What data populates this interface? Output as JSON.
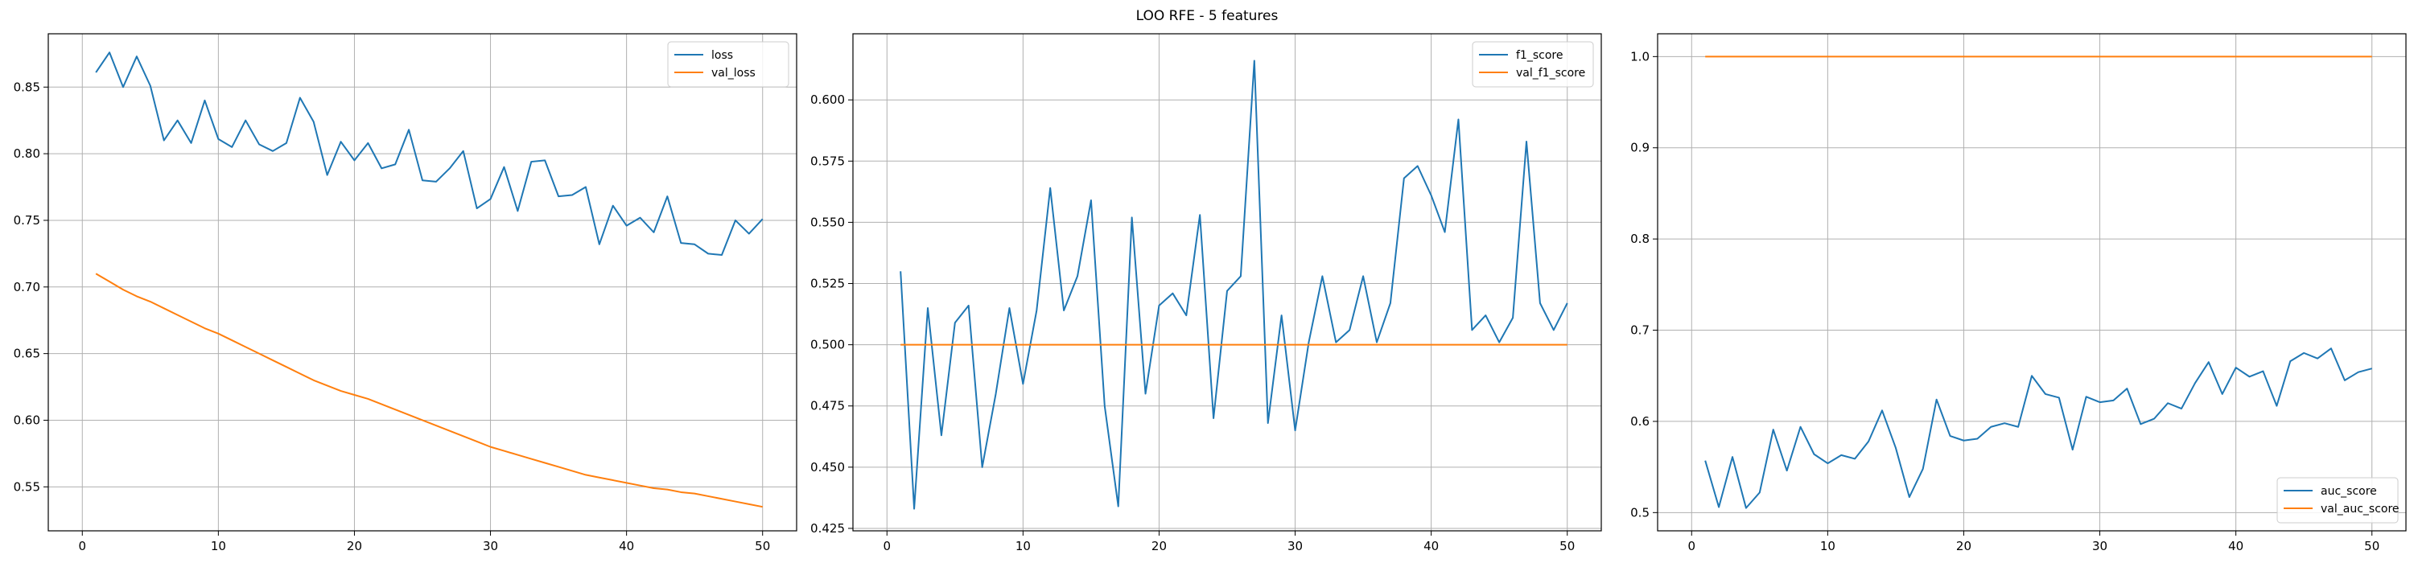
{
  "figure": {
    "title": "LOO RFE - 5 features"
  },
  "colors": {
    "train": "#1f77b4",
    "val": "#ff7f0e",
    "grid": "#b0b0b0",
    "axes": "#000000"
  },
  "chart_data": [
    {
      "type": "line",
      "title": "",
      "xlabel": "",
      "ylabel": "",
      "xlim": [
        -2.5,
        52.5
      ],
      "ylim": [
        0.517,
        0.89
      ],
      "xticks": [
        0,
        10,
        20,
        30,
        40,
        50
      ],
      "yticks": [
        0.55,
        0.6,
        0.65,
        0.7,
        0.75,
        0.8,
        0.85
      ],
      "ytick_labels": [
        "0.55",
        "0.60",
        "0.65",
        "0.70",
        "0.75",
        "0.80",
        "0.85"
      ],
      "grid": true,
      "legend": "top-right",
      "x": [
        1,
        2,
        3,
        4,
        5,
        6,
        7,
        8,
        9,
        10,
        11,
        12,
        13,
        14,
        15,
        16,
        17,
        18,
        19,
        20,
        21,
        22,
        23,
        24,
        25,
        26,
        27,
        28,
        29,
        30,
        31,
        32,
        33,
        34,
        35,
        36,
        37,
        38,
        39,
        40,
        41,
        42,
        43,
        44,
        45,
        46,
        47,
        48,
        49,
        50
      ],
      "series": [
        {
          "name": "loss",
          "values": [
            0.861,
            0.876,
            0.85,
            0.873,
            0.851,
            0.81,
            0.825,
            0.808,
            0.84,
            0.811,
            0.805,
            0.825,
            0.807,
            0.802,
            0.808,
            0.842,
            0.824,
            0.784,
            0.809,
            0.795,
            0.808,
            0.789,
            0.792,
            0.818,
            0.78,
            0.779,
            0.789,
            0.802,
            0.759,
            0.766,
            0.79,
            0.757,
            0.794,
            0.795,
            0.768,
            0.769,
            0.775,
            0.732,
            0.761,
            0.746,
            0.752,
            0.741,
            0.768,
            0.733,
            0.732,
            0.725,
            0.724,
            0.75,
            0.74,
            0.751
          ]
        },
        {
          "name": "val_loss",
          "values": [
            0.71,
            0.704,
            0.698,
            0.693,
            0.689,
            0.684,
            0.679,
            0.674,
            0.669,
            0.665,
            0.66,
            0.655,
            0.65,
            0.645,
            0.64,
            0.635,
            0.63,
            0.626,
            0.622,
            0.619,
            0.616,
            0.612,
            0.608,
            0.604,
            0.6,
            0.596,
            0.592,
            0.588,
            0.584,
            0.58,
            0.577,
            0.574,
            0.571,
            0.568,
            0.565,
            0.562,
            0.559,
            0.557,
            0.555,
            0.553,
            0.551,
            0.549,
            0.548,
            0.546,
            0.545,
            0.543,
            0.541,
            0.539,
            0.537,
            0.535
          ]
        }
      ]
    },
    {
      "type": "line",
      "title": "",
      "xlabel": "",
      "ylabel": "",
      "xlim": [
        -2.5,
        52.5
      ],
      "ylim": [
        0.424,
        0.627
      ],
      "xticks": [
        0,
        10,
        20,
        30,
        40,
        50
      ],
      "yticks": [
        0.425,
        0.45,
        0.475,
        0.5,
        0.525,
        0.55,
        0.575,
        0.6
      ],
      "ytick_labels": [
        "0.425",
        "0.450",
        "0.475",
        "0.500",
        "0.525",
        "0.550",
        "0.575",
        "0.600"
      ],
      "grid": true,
      "legend": "top-right",
      "x": [
        1,
        2,
        3,
        4,
        5,
        6,
        7,
        8,
        9,
        10,
        11,
        12,
        13,
        14,
        15,
        16,
        17,
        18,
        19,
        20,
        21,
        22,
        23,
        24,
        25,
        26,
        27,
        28,
        29,
        30,
        31,
        32,
        33,
        34,
        35,
        36,
        37,
        38,
        39,
        40,
        41,
        42,
        43,
        44,
        45,
        46,
        47,
        48,
        49,
        50
      ],
      "series": [
        {
          "name": "f1_score",
          "values": [
            0.53,
            0.433,
            0.515,
            0.463,
            0.509,
            0.516,
            0.45,
            0.48,
            0.515,
            0.484,
            0.514,
            0.564,
            0.514,
            0.528,
            0.559,
            0.475,
            0.434,
            0.552,
            0.48,
            0.516,
            0.521,
            0.512,
            0.553,
            0.47,
            0.522,
            0.528,
            0.616,
            0.468,
            0.512,
            0.465,
            0.501,
            0.528,
            0.501,
            0.506,
            0.528,
            0.501,
            0.517,
            0.568,
            0.573,
            0.561,
            0.546,
            0.592,
            0.506,
            0.512,
            0.501,
            0.511,
            0.583,
            0.517,
            0.506,
            0.517
          ]
        },
        {
          "name": "val_f1_score",
          "values": [
            0.5,
            0.5,
            0.5,
            0.5,
            0.5,
            0.5,
            0.5,
            0.5,
            0.5,
            0.5,
            0.5,
            0.5,
            0.5,
            0.5,
            0.5,
            0.5,
            0.5,
            0.5,
            0.5,
            0.5,
            0.5,
            0.5,
            0.5,
            0.5,
            0.5,
            0.5,
            0.5,
            0.5,
            0.5,
            0.5,
            0.5,
            0.5,
            0.5,
            0.5,
            0.5,
            0.5,
            0.5,
            0.5,
            0.5,
            0.5,
            0.5,
            0.5,
            0.5,
            0.5,
            0.5,
            0.5,
            0.5,
            0.5,
            0.5,
            0.5
          ]
        }
      ]
    },
    {
      "type": "line",
      "title": "",
      "xlabel": "",
      "ylabel": "",
      "xlim": [
        -2.5,
        52.5
      ],
      "ylim": [
        0.48,
        1.025
      ],
      "xticks": [
        0,
        10,
        20,
        30,
        40,
        50
      ],
      "yticks": [
        0.5,
        0.6,
        0.7,
        0.8,
        0.9,
        1.0
      ],
      "ytick_labels": [
        "0.5",
        "0.6",
        "0.7",
        "0.8",
        "0.9",
        "1.0"
      ],
      "grid": true,
      "legend": "bottom-right",
      "x": [
        1,
        2,
        3,
        4,
        5,
        6,
        7,
        8,
        9,
        10,
        11,
        12,
        13,
        14,
        15,
        16,
        17,
        18,
        19,
        20,
        21,
        22,
        23,
        24,
        25,
        26,
        27,
        28,
        29,
        30,
        31,
        32,
        33,
        34,
        35,
        36,
        37,
        38,
        39,
        40,
        41,
        42,
        43,
        44,
        45,
        46,
        47,
        48,
        49,
        50
      ],
      "series": [
        {
          "name": "auc_score",
          "values": [
            0.557,
            0.506,
            0.561,
            0.505,
            0.522,
            0.591,
            0.546,
            0.594,
            0.564,
            0.554,
            0.563,
            0.559,
            0.578,
            0.612,
            0.571,
            0.517,
            0.548,
            0.624,
            0.584,
            0.579,
            0.581,
            0.594,
            0.598,
            0.594,
            0.65,
            0.63,
            0.626,
            0.569,
            0.627,
            0.621,
            0.623,
            0.636,
            0.597,
            0.603,
            0.62,
            0.614,
            0.642,
            0.665,
            0.63,
            0.659,
            0.649,
            0.655,
            0.617,
            0.666,
            0.675,
            0.669,
            0.68,
            0.645,
            0.654,
            0.658
          ]
        },
        {
          "name": "val_auc_score",
          "values": [
            1.0,
            1.0,
            1.0,
            1.0,
            1.0,
            1.0,
            1.0,
            1.0,
            1.0,
            1.0,
            1.0,
            1.0,
            1.0,
            1.0,
            1.0,
            1.0,
            1.0,
            1.0,
            1.0,
            1.0,
            1.0,
            1.0,
            1.0,
            1.0,
            1.0,
            1.0,
            1.0,
            1.0,
            1.0,
            1.0,
            1.0,
            1.0,
            1.0,
            1.0,
            1.0,
            1.0,
            1.0,
            1.0,
            1.0,
            1.0,
            1.0,
            1.0,
            1.0,
            1.0,
            1.0,
            1.0,
            1.0,
            1.0,
            1.0,
            1.0
          ]
        }
      ]
    }
  ]
}
